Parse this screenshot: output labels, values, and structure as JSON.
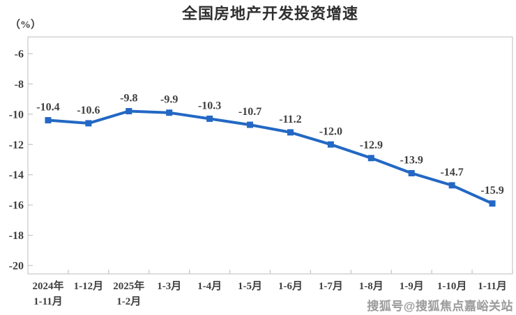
{
  "chart_data": {
    "type": "line",
    "title": "全国房地产开发投资增速",
    "unit_label": "（%）",
    "categories": [
      "2024年\n1-11月",
      "1-12月",
      "2025年\n1-2月",
      "1-3月",
      "1-4月",
      "1-5月",
      "1-6月",
      "1-7月",
      "1-8月",
      "1-9月",
      "1-10月",
      "1-11月"
    ],
    "values": [
      -10.4,
      -10.6,
      -9.8,
      -9.9,
      -10.3,
      -10.7,
      -11.2,
      -12.0,
      -12.9,
      -13.9,
      -14.7,
      -15.9
    ],
    "value_labels": [
      "-10.4",
      "-10.6",
      "-9.8",
      "-9.9",
      "-10.3",
      "-10.7",
      "-11.2",
      "-12.0",
      "-12.9",
      "-13.9",
      "-14.7",
      "-15.9"
    ],
    "yticks": [
      -6,
      -8,
      -10,
      -12,
      -14,
      -16,
      -18,
      -20
    ],
    "ytick_labels": [
      "-6",
      "-8",
      "-10",
      "-12",
      "-14",
      "-16",
      "-18",
      "-20"
    ],
    "ylim": [
      -20.6,
      -4.9
    ],
    "xlabel": "",
    "ylabel": "（%）",
    "grid": false,
    "legend": "none",
    "line_color": "#2368c4",
    "marker": "square",
    "marker_color": "#2368c4",
    "axis_color": "#c8c8c8",
    "label_color": "#3f3f3f"
  },
  "watermark": "搜狐号@搜狐焦点嘉峪关站"
}
